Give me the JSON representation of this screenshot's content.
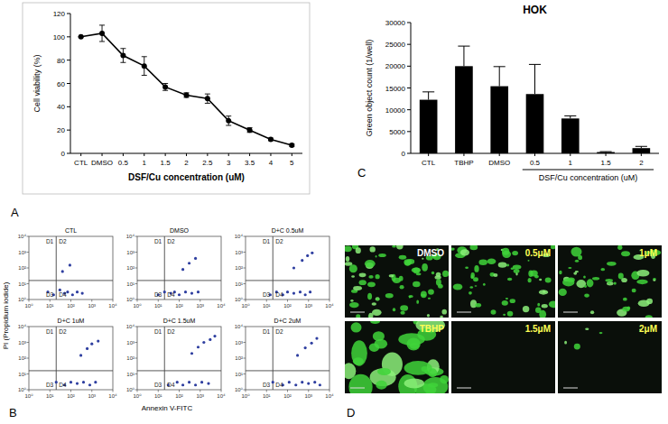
{
  "chart_data": [
    {
      "type": "line",
      "categories": [
        "CTL",
        "DMSO",
        "0.5",
        "1",
        "1.5",
        "2",
        "2.5",
        "3",
        "3.5",
        "4",
        "5"
      ],
      "values": [
        100,
        103,
        84,
        75,
        57,
        50,
        47,
        28,
        20,
        12,
        7
      ],
      "errors": [
        0,
        7,
        6,
        8,
        3,
        2,
        4,
        4,
        2,
        1,
        1
      ],
      "ylim": [
        0,
        120
      ],
      "yticks": [
        0,
        20,
        40,
        60,
        80,
        100,
        120
      ],
      "x_label": "DSF/Cu concentration (uM)",
      "y_label": "Cell viability (%)",
      "color": "#000000",
      "marker": "circle",
      "grid": false
    },
    {
      "type": "scatter",
      "title": "CTL",
      "log": true,
      "xlim": [
        1,
        10000
      ],
      "ylim": [
        1,
        10000
      ],
      "xticks": [
        {
          "value": 1,
          "label": "10⁰"
        },
        {
          "value": 10,
          "label": "10¹"
        },
        {
          "value": 100,
          "label": "10²"
        },
        {
          "value": 1000,
          "label": "10³"
        },
        {
          "value": 10000,
          "label": "10⁴"
        }
      ],
      "yticks": [
        {
          "value": 1,
          "label": "10⁰"
        },
        {
          "value": 10,
          "label": "10¹"
        },
        {
          "value": 100,
          "label": "10²"
        },
        {
          "value": 1000,
          "label": "10³"
        },
        {
          "value": 10000,
          "label": "10⁴"
        }
      ],
      "gate_x": 20,
      "gate_y": 16,
      "quadrant_labels": [
        "D1",
        "D2",
        "D3",
        "D4"
      ],
      "x": [
        8,
        15,
        30,
        50,
        70,
        120,
        200,
        350,
        40,
        90
      ],
      "y": [
        3,
        2,
        4,
        2.5,
        3,
        2,
        3,
        2.5,
        60,
        150
      ],
      "color": "#2f3fa0",
      "marker": "circle"
    },
    {
      "type": "scatter",
      "title": "DMSO",
      "log": true,
      "xlim": [
        1,
        10000
      ],
      "ylim": [
        1,
        10000
      ],
      "xticks": [
        {
          "value": 1,
          "label": "10⁰"
        },
        {
          "value": 10,
          "label": "10¹"
        },
        {
          "value": 100,
          "label": "10²"
        },
        {
          "value": 1000,
          "label": "10³"
        },
        {
          "value": 10000,
          "label": "10⁴"
        }
      ],
      "yticks": [
        {
          "value": 1,
          "label": "10⁰"
        },
        {
          "value": 10,
          "label": "10¹"
        },
        {
          "value": 100,
          "label": "10²"
        },
        {
          "value": 1000,
          "label": "10³"
        },
        {
          "value": 10000,
          "label": "10⁴"
        }
      ],
      "gate_x": 20,
      "gate_y": 16,
      "quadrant_labels": [
        "D1",
        "D2",
        "D3",
        "D4"
      ],
      "x": [
        10,
        20,
        40,
        60,
        100,
        200,
        400,
        800,
        150,
        300,
        600
      ],
      "y": [
        2,
        3,
        2.5,
        3,
        2,
        3,
        2.5,
        3,
        80,
        200,
        400
      ],
      "color": "#2f3fa0",
      "marker": "circle"
    },
    {
      "type": "scatter",
      "title": "D+C 0.5uM",
      "log": true,
      "xlim": [
        1,
        10000
      ],
      "ylim": [
        1,
        10000
      ],
      "xticks": [
        {
          "value": 1,
          "label": "10⁰"
        },
        {
          "value": 10,
          "label": "10¹"
        },
        {
          "value": 100,
          "label": "10²"
        },
        {
          "value": 1000,
          "label": "10³"
        },
        {
          "value": 10000,
          "label": "10⁴"
        }
      ],
      "yticks": [
        {
          "value": 1,
          "label": "10⁰"
        },
        {
          "value": 10,
          "label": "10¹"
        },
        {
          "value": 100,
          "label": "10²"
        },
        {
          "value": 1000,
          "label": "10³"
        },
        {
          "value": 10000,
          "label": "10⁴"
        }
      ],
      "gate_x": 20,
      "gate_y": 16,
      "quadrant_labels": [
        "D1",
        "D2",
        "D3",
        "D4"
      ],
      "x": [
        15,
        30,
        60,
        100,
        200,
        400,
        700,
        1200,
        200,
        500,
        900,
        1500
      ],
      "y": [
        2,
        3,
        2,
        3,
        2.5,
        3,
        2,
        3,
        100,
        300,
        600,
        900
      ],
      "color": "#2f3fa0",
      "marker": "circle"
    },
    {
      "type": "scatter",
      "title": "D+C 1uM",
      "log": true,
      "xlim": [
        1,
        10000
      ],
      "ylim": [
        1,
        10000
      ],
      "xticks": [
        {
          "value": 1,
          "label": "10⁰"
        },
        {
          "value": 10,
          "label": "10¹"
        },
        {
          "value": 100,
          "label": "10²"
        },
        {
          "value": 1000,
          "label": "10³"
        },
        {
          "value": 10000,
          "label": "10⁴"
        }
      ],
      "yticks": [
        {
          "value": 1,
          "label": "10⁰"
        },
        {
          "value": 10,
          "label": "10¹"
        },
        {
          "value": 100,
          "label": "10²"
        },
        {
          "value": 1000,
          "label": "10³"
        },
        {
          "value": 10000,
          "label": "10⁴"
        }
      ],
      "gate_x": 20,
      "gate_y": 16,
      "quadrant_labels": [
        "D1",
        "D2",
        "D3",
        "D4"
      ],
      "x": [
        20,
        50,
        100,
        200,
        400,
        800,
        1500,
        300,
        600,
        1000,
        2000
      ],
      "y": [
        3,
        2,
        3,
        2.5,
        3,
        2,
        3,
        150,
        400,
        800,
        1200
      ],
      "color": "#2f3fa0",
      "marker": "circle"
    },
    {
      "type": "scatter",
      "title": "D+C 1.5uM",
      "log": true,
      "xlim": [
        1,
        10000
      ],
      "ylim": [
        1,
        10000
      ],
      "xticks": [
        {
          "value": 1,
          "label": "10⁰"
        },
        {
          "value": 10,
          "label": "10¹"
        },
        {
          "value": 100,
          "label": "10²"
        },
        {
          "value": 1000,
          "label": "10³"
        },
        {
          "value": 10000,
          "label": "10⁴"
        }
      ],
      "yticks": [
        {
          "value": 1,
          "label": "10⁰"
        },
        {
          "value": 10,
          "label": "10¹"
        },
        {
          "value": 100,
          "label": "10²"
        },
        {
          "value": 1000,
          "label": "10³"
        },
        {
          "value": 10000,
          "label": "10⁴"
        }
      ],
      "gate_x": 20,
      "gate_y": 16,
      "quadrant_labels": [
        "D1",
        "D2",
        "D3",
        "D4"
      ],
      "x": [
        30,
        80,
        150,
        300,
        600,
        1200,
        2500,
        400,
        800,
        1500,
        3000,
        5000
      ],
      "y": [
        2,
        3,
        2,
        3,
        2,
        3,
        2.5,
        200,
        500,
        1000,
        1500,
        2500
      ],
      "color": "#2f3fa0",
      "marker": "circle"
    },
    {
      "type": "scatter",
      "title": "D+C 2uM",
      "log": true,
      "xlim": [
        1,
        10000
      ],
      "ylim": [
        1,
        10000
      ],
      "xticks": [
        {
          "value": 1,
          "label": "10⁰"
        },
        {
          "value": 10,
          "label": "10¹"
        },
        {
          "value": 100,
          "label": "10²"
        },
        {
          "value": 1000,
          "label": "10³"
        },
        {
          "value": 10000,
          "label": "10⁴"
        }
      ],
      "yticks": [
        {
          "value": 1,
          "label": "10⁰"
        },
        {
          "value": 10,
          "label": "10¹"
        },
        {
          "value": 100,
          "label": "10²"
        },
        {
          "value": 1000,
          "label": "10³"
        },
        {
          "value": 10000,
          "label": "10⁴"
        }
      ],
      "gate_x": 20,
      "gate_y": 16,
      "quadrant_labels": [
        "D1",
        "D2",
        "D3",
        "D4"
      ],
      "x": [
        20,
        60,
        120,
        250,
        500,
        1000,
        2000,
        3500,
        300,
        700,
        1400,
        2500
      ],
      "y": [
        3,
        2,
        3,
        2,
        3,
        2.5,
        3,
        2,
        150,
        450,
        900,
        1800
      ],
      "color": "#2f3fa0",
      "marker": "circle"
    },
    {
      "type": "bar",
      "title": "HOK",
      "categories": [
        "CTL",
        "TBHP",
        "DMSO",
        "0.5",
        "1",
        "1.5",
        "2"
      ],
      "values": [
        12300,
        20000,
        15400,
        13600,
        8000,
        300,
        1200
      ],
      "errors": [
        1800,
        4600,
        4500,
        6800,
        600,
        100,
        400
      ],
      "ylim": [
        0,
        30000
      ],
      "yticks": [
        0,
        5000,
        10000,
        15000,
        20000,
        25000,
        30000
      ],
      "y_label": "Green object count (1/well)",
      "group": {
        "label": "DSF/Cu concentration (uM)",
        "categories": [
          "0.5",
          "1",
          "1.5",
          "2"
        ]
      },
      "color": "#000000",
      "grid": false
    }
  ],
  "panel_labels": [
    "A",
    "B",
    "C",
    "D"
  ],
  "panel_b_axes": {
    "x_label": "Annexin V-FITC",
    "y_label": "PI (Propidium iodide)"
  },
  "images": {
    "labels": [
      "DMSO",
      "0.5μM",
      "1μM",
      "TBHP",
      "1.5μM",
      "2μM"
    ]
  }
}
